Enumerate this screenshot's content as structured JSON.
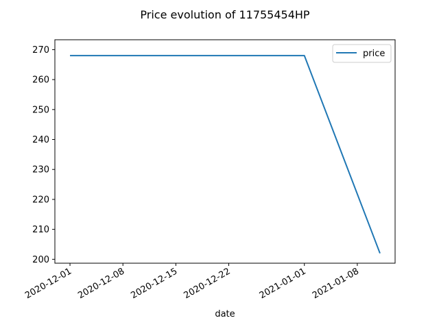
{
  "chart_data": {
    "type": "line",
    "title": "Price evolution of 11755454HP",
    "xlabel": "date",
    "ylabel": "",
    "x_type": "date",
    "xlim": [
      "2020-11-29",
      "2021-01-13"
    ],
    "ylim": [
      198.7,
      273.3
    ],
    "yticks": [
      200,
      210,
      220,
      230,
      240,
      250,
      260,
      270
    ],
    "xticks": [
      "2020-12-01",
      "2020-12-08",
      "2020-12-15",
      "2020-12-22",
      "2021-01-01",
      "2021-01-08"
    ],
    "grid": false,
    "legend_position": "top-right",
    "series": [
      {
        "name": "price",
        "color": "#1f77b4",
        "x": [
          "2020-12-01",
          "2021-01-01",
          "2021-01-11"
        ],
        "y": [
          268,
          268,
          202
        ]
      }
    ]
  }
}
